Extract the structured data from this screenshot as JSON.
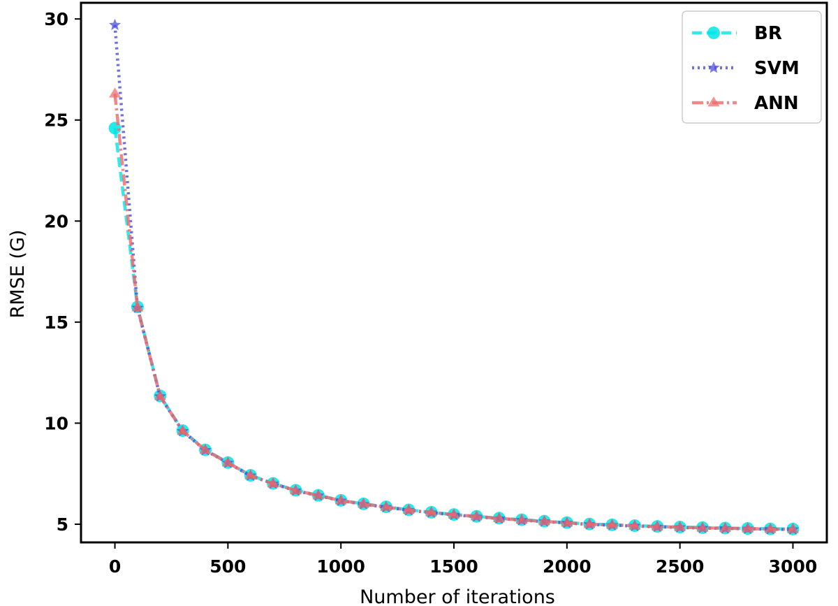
{
  "chart_data": {
    "type": "line",
    "xlabel": "Number of iterations",
    "ylabel": "RMSE  (G)",
    "xlim": [
      -150,
      3150
    ],
    "ylim": [
      4.1,
      30.8
    ],
    "xticks": [
      0,
      500,
      1000,
      1500,
      2000,
      2500,
      3000
    ],
    "yticks": [
      5,
      10,
      15,
      20,
      25,
      30
    ],
    "grid": false,
    "legend_position": "top-right",
    "x": [
      0,
      100,
      200,
      300,
      400,
      500,
      600,
      700,
      800,
      900,
      1000,
      1100,
      1200,
      1300,
      1400,
      1500,
      1600,
      1700,
      1800,
      1900,
      2000,
      2100,
      2200,
      2300,
      2400,
      2500,
      2600,
      2700,
      2800,
      2900,
      3000
    ],
    "series": [
      {
        "name": "BR",
        "color": "#00e5e5",
        "line_style": "dashed",
        "marker": "circle",
        "values": [
          24.6,
          15.75,
          11.35,
          9.63,
          8.68,
          8.05,
          7.42,
          7.02,
          6.68,
          6.43,
          6.18,
          6.01,
          5.86,
          5.71,
          5.59,
          5.48,
          5.39,
          5.3,
          5.22,
          5.15,
          5.08,
          5.01,
          4.97,
          4.93,
          4.89,
          4.86,
          4.83,
          4.81,
          4.79,
          4.77,
          4.76
        ]
      },
      {
        "name": "SVM",
        "color": "#4b4bdd",
        "line_style": "dotted",
        "marker": "star",
        "values": [
          29.7,
          15.7,
          11.32,
          9.6,
          8.66,
          8.03,
          7.4,
          7.0,
          6.66,
          6.41,
          6.16,
          5.99,
          5.84,
          5.69,
          5.57,
          5.46,
          5.37,
          5.28,
          5.2,
          5.13,
          5.06,
          4.99,
          4.95,
          4.91,
          4.87,
          4.84,
          4.81,
          4.79,
          4.77,
          4.75,
          4.74
        ]
      },
      {
        "name": "ANN",
        "color": "#f06868",
        "line_style": "dash-dot",
        "marker": "triangle",
        "values": [
          26.3,
          15.72,
          11.33,
          9.61,
          8.67,
          8.04,
          7.41,
          7.01,
          6.67,
          6.42,
          6.17,
          6.0,
          5.85,
          5.7,
          5.58,
          5.47,
          5.38,
          5.29,
          5.21,
          5.14,
          5.07,
          5.0,
          4.96,
          4.92,
          4.88,
          4.85,
          4.82,
          4.8,
          4.78,
          4.76,
          4.75
        ]
      }
    ]
  }
}
